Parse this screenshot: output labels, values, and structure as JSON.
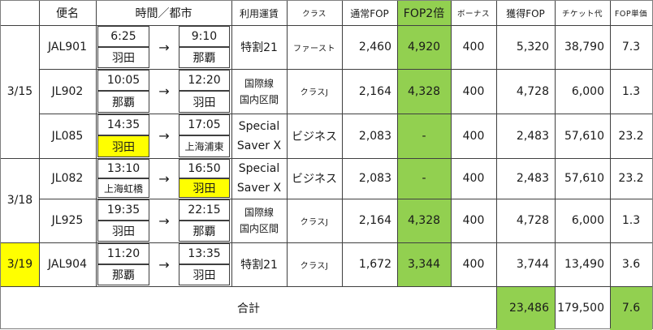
{
  "headers": {
    "flight": "便名",
    "time_city": "時間／都市",
    "fare": "利用運賃",
    "class": "クラス",
    "base_fop": "通常FOP",
    "double_fop": "FOP2倍",
    "bonus": "ボーナス",
    "earned_fop": "獲得FOP",
    "ticket": "チケット代",
    "unit": "FOP単価"
  },
  "dates": [
    "3/15",
    "3/18",
    "3/19"
  ],
  "arrow": "→",
  "rows": [
    {
      "flight": "JAL901",
      "dep_time": "6:25",
      "dep_city": "羽田",
      "arr_time": "9:10",
      "arr_city": "那覇",
      "fare1": "特割21",
      "fare2": "",
      "class": "ファースト",
      "base": "2,460",
      "double": "4,920",
      "bonus": "400",
      "earned": "5,320",
      "ticket": "38,790",
      "unit": "7.3"
    },
    {
      "flight": "JL902",
      "dep_time": "10:05",
      "dep_city": "那覇",
      "arr_time": "12:20",
      "arr_city": "羽田",
      "fare1": "国際線",
      "fare2": "国内区間",
      "class": "クラスJ",
      "base": "2,164",
      "double": "4,328",
      "bonus": "400",
      "earned": "4,728",
      "ticket": "6,000",
      "unit": "1.3"
    },
    {
      "flight": "JL085",
      "dep_time": "14:35",
      "dep_city": "羽田",
      "arr_time": "17:05",
      "arr_city": "上海浦東",
      "fare1": "Special",
      "fare2": "Saver X",
      "class": "ビジネス",
      "base": "2,083",
      "double": "-",
      "bonus": "400",
      "earned": "2,483",
      "ticket": "57,610",
      "unit": "23.2"
    },
    {
      "flight": "JL082",
      "dep_time": "13:10",
      "dep_city": "上海虹橋",
      "arr_time": "16:50",
      "arr_city": "羽田",
      "fare1": "Special",
      "fare2": "Saver X",
      "class": "ビジネス",
      "base": "2,083",
      "double": "-",
      "bonus": "400",
      "earned": "2,483",
      "ticket": "57,610",
      "unit": "23.2"
    },
    {
      "flight": "JL925",
      "dep_time": "19:35",
      "dep_city": "羽田",
      "arr_time": "22:15",
      "arr_city": "那覇",
      "fare1": "国際線",
      "fare2": "国内区間",
      "class": "クラスJ",
      "base": "2,164",
      "double": "4,328",
      "bonus": "400",
      "earned": "4,728",
      "ticket": "6,000",
      "unit": "1.3"
    },
    {
      "flight": "JAL904",
      "dep_time": "11:20",
      "dep_city": "那覇",
      "arr_time": "13:35",
      "arr_city": "羽田",
      "fare1": "特割21",
      "fare2": "",
      "class": "クラスJ",
      "base": "1,672",
      "double": "3,344",
      "bonus": "400",
      "earned": "3,744",
      "ticket": "13,490",
      "unit": "3.6"
    }
  ],
  "total": {
    "label": "合計",
    "earned": "23,486",
    "ticket": "179,500",
    "unit": "7.6"
  },
  "colors": {
    "highlight": "#ffff00",
    "green": "#92d050",
    "grid": "#404040"
  }
}
